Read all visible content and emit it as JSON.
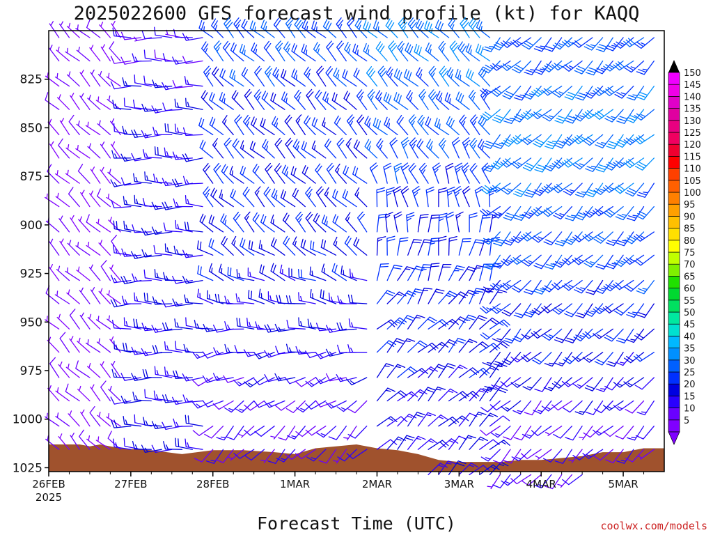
{
  "chart_data": {
    "type": "wind_barb_profile",
    "title": "2025022600 GFS forecast wind profile (kt) for KAQQ",
    "xlabel": "Forecast Time (UTC)",
    "ylabel": "",
    "x_ticks": [
      {
        "label": "26FEB",
        "sublabel": "2025",
        "hour": 0
      },
      {
        "label": "27FEB",
        "sublabel": "",
        "hour": 24
      },
      {
        "label": "28FEB",
        "sublabel": "",
        "hour": 48
      },
      {
        "label": "1MAR",
        "sublabel": "",
        "hour": 72
      },
      {
        "label": "2MAR",
        "sublabel": "",
        "hour": 96
      },
      {
        "label": "3MAR",
        "sublabel": "",
        "hour": 120
      },
      {
        "label": "4MAR",
        "sublabel": "",
        "hour": 144
      },
      {
        "label": "5MAR",
        "sublabel": "",
        "hour": 168
      }
    ],
    "xlim_hours": [
      0,
      180
    ],
    "x_step_hours": 3,
    "y_ticks": [
      825,
      850,
      875,
      900,
      925,
      950,
      975,
      1000,
      1025
    ],
    "ylim_hPa": [
      800,
      1027
    ],
    "levels_hPa": [
      800,
      812,
      825,
      837,
      850,
      862,
      875,
      887,
      900,
      912,
      925,
      937,
      950,
      962,
      975,
      987,
      1000,
      1012,
      1025
    ],
    "colorbar": {
      "values": [
        5,
        10,
        15,
        20,
        25,
        30,
        35,
        40,
        45,
        50,
        55,
        60,
        65,
        70,
        75,
        80,
        85,
        90,
        95,
        100,
        105,
        110,
        115,
        120,
        125,
        130,
        135,
        140,
        145,
        150
      ],
      "colors": [
        "#8000ff",
        "#6a00ff",
        "#2a00ff",
        "#0000e0",
        "#0030ff",
        "#0060ff",
        "#0090ff",
        "#00b8ff",
        "#00e0d0",
        "#00e8a0",
        "#00e060",
        "#00d830",
        "#20e000",
        "#80f000",
        "#c0ff00",
        "#ffff00",
        "#ffe000",
        "#ffc000",
        "#ffa000",
        "#ff8000",
        "#ff6000",
        "#ff4000",
        "#ff0000",
        "#f00030",
        "#f00060",
        "#e80080",
        "#e000a0",
        "#e000c8",
        "#f000e8",
        "#f000ff"
      ]
    },
    "terrain": {
      "color": "#a0522d",
      "surface_hPa": [
        [
          0,
          1013
        ],
        [
          9,
          1013
        ],
        [
          12,
          1014
        ],
        [
          15,
          1013
        ],
        [
          21,
          1015
        ],
        [
          30,
          1016
        ],
        [
          39,
          1018
        ],
        [
          48,
          1016
        ],
        [
          57,
          1016
        ],
        [
          66,
          1017
        ],
        [
          72,
          1018
        ],
        [
          78,
          1015
        ],
        [
          84,
          1014
        ],
        [
          90,
          1013
        ],
        [
          96,
          1015
        ],
        [
          102,
          1016
        ],
        [
          108,
          1018
        ],
        [
          114,
          1021
        ],
        [
          120,
          1022
        ],
        [
          126,
          1022
        ],
        [
          132,
          1022
        ],
        [
          138,
          1021
        ],
        [
          144,
          1021
        ],
        [
          150,
          1020
        ],
        [
          156,
          1019
        ],
        [
          162,
          1017
        ],
        [
          168,
          1017
        ],
        [
          174,
          1015
        ],
        [
          180,
          1015
        ]
      ]
    },
    "wind_segments": [
      {
        "hours": [
          0,
          24
        ],
        "levels": [
          [
            800,
            "NW",
            5
          ],
          [
            825,
            "NW",
            5
          ],
          [
            850,
            "NW",
            5
          ],
          [
            875,
            "NW",
            5
          ],
          [
            900,
            "NW",
            5
          ],
          [
            925,
            "NW",
            5
          ],
          [
            950,
            "NW",
            5
          ],
          [
            975,
            "NW",
            5
          ],
          [
            1000,
            "NW",
            5
          ]
        ]
      },
      {
        "hours": [
          24,
          48
        ],
        "levels": [
          [
            800,
            "W",
            10
          ],
          [
            850,
            "W",
            15
          ],
          [
            900,
            "W",
            15
          ],
          [
            950,
            "W",
            15
          ],
          [
            1000,
            "W",
            15
          ]
        ]
      },
      {
        "hours": [
          48,
          96
        ],
        "levels": [
          [
            800,
            "NW",
            25
          ],
          [
            850,
            "NW",
            20
          ],
          [
            900,
            "NW",
            20
          ],
          [
            950,
            "W",
            15
          ],
          [
            1000,
            "SW",
            10
          ]
        ]
      },
      {
        "hours": [
          96,
          132
        ],
        "levels": [
          [
            800,
            "NW",
            30
          ],
          [
            850,
            "NW",
            25
          ],
          [
            900,
            "N",
            20
          ],
          [
            950,
            "NE",
            20
          ],
          [
            1000,
            "NE",
            15
          ]
        ]
      },
      {
        "hours": [
          132,
          180
        ],
        "levels": [
          [
            800,
            "SW",
            25
          ],
          [
            850,
            "SW",
            30
          ],
          [
            900,
            "SW",
            25
          ],
          [
            950,
            "SW",
            20
          ],
          [
            1000,
            "SW",
            10
          ]
        ]
      }
    ]
  },
  "credit": "coolwx.com/models"
}
